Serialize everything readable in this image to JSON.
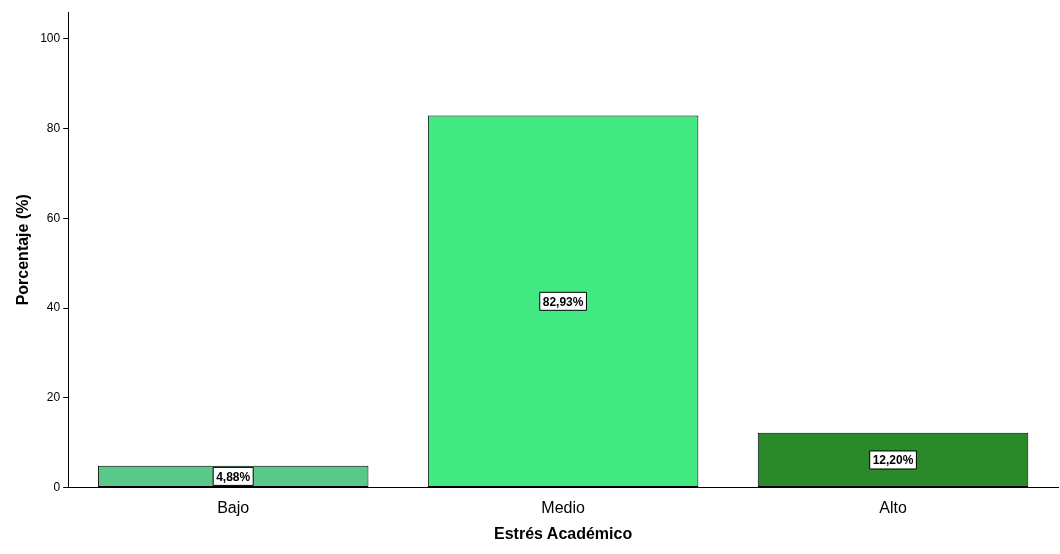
{
  "chart_data": {
    "type": "bar",
    "xlabel": "Estrés Académico",
    "ylabel": "Porcentaje (%)",
    "categories": [
      "Bajo",
      "Medio",
      "Alto"
    ],
    "values": [
      4.88,
      82.93,
      12.2
    ],
    "colors": [
      "#5ac88a",
      "#42e882",
      "#2a8a2a"
    ],
    "value_labels": [
      "4,88%",
      "82,93%",
      "12,20%"
    ],
    "ylim": [
      0,
      106
    ],
    "yticks": [
      0,
      20,
      40,
      60,
      80,
      100
    ],
    "grid": false,
    "legend": false
  }
}
